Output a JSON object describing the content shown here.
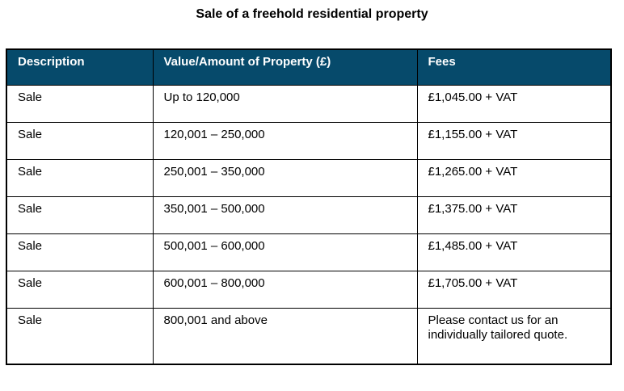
{
  "title": "Sale of a freehold residential property",
  "theme": {
    "header_bg": "#064A6B",
    "header_text": "#ffffff",
    "border_color": "#000000",
    "body_text": "#000000"
  },
  "table": {
    "columns": {
      "description": "Description",
      "value": "Value/Amount of Property (£)",
      "fees": "Fees"
    },
    "rows": [
      {
        "description": "Sale",
        "value": "Up to 120,000",
        "fees": "£1,045.00 + VAT"
      },
      {
        "description": "Sale",
        "value": "120,001 – 250,000",
        "fees": "£1,155.00 + VAT"
      },
      {
        "description": "Sale",
        "value": "250,001 – 350,000",
        "fees": "£1,265.00 + VAT"
      },
      {
        "description": "Sale",
        "value": "350,001 – 500,000",
        "fees": "£1,375.00 + VAT"
      },
      {
        "description": "Sale",
        "value": "500,001 – 600,000",
        "fees": "£1,485.00 + VAT"
      },
      {
        "description": "Sale",
        "value": "600,001 – 800,000",
        "fees": "£1,705.00 + VAT"
      },
      {
        "description": "Sale",
        "value": "800,001 and above",
        "fees": "Please contact us for an individually tailored quote."
      }
    ]
  }
}
